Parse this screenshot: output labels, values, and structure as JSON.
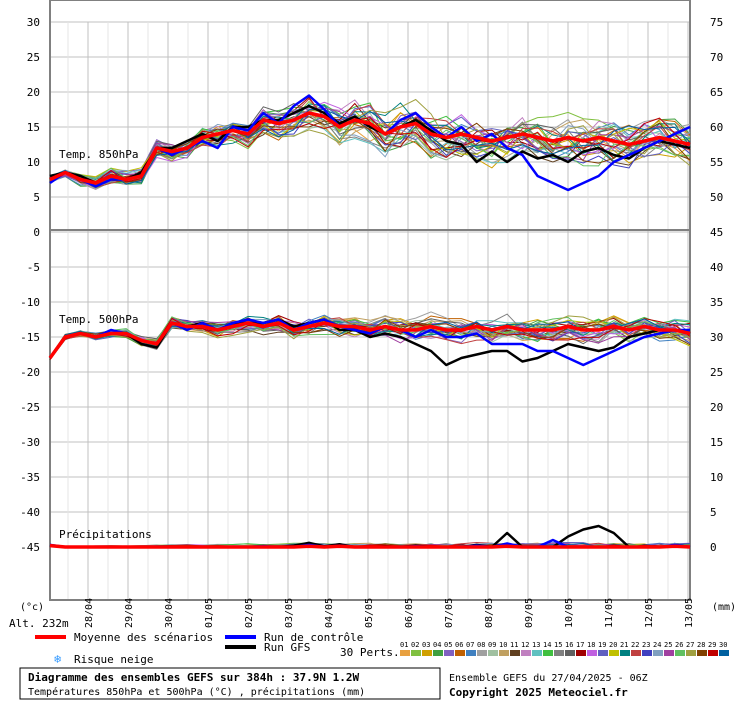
{
  "chart_data": {
    "type": "line",
    "left_axis_labels": [
      "30",
      "25",
      "20",
      "15",
      "10",
      "5",
      "0",
      "-5",
      "-10",
      "-15",
      "-20",
      "-25",
      "-30",
      "-35",
      "-40",
      "-45"
    ],
    "right_axis_labels": [
      "75",
      "70",
      "65",
      "60",
      "55",
      "50",
      "45",
      "40",
      "35",
      "30",
      "25",
      "20",
      "15",
      "10",
      "5",
      "0"
    ],
    "left_unit": "(°c)",
    "right_unit": "(mm)",
    "altitude": "Alt. 232m",
    "dates": [
      "28/04",
      "29/04",
      "30/04",
      "01/05",
      "02/05",
      "03/05",
      "04/05",
      "05/05",
      "06/05",
      "07/05",
      "08/05",
      "09/05",
      "10/05",
      "11/05",
      "12/05",
      "13/05"
    ],
    "panels": {
      "t850": {
        "label": "Temp. 850hPa",
        "mean": [
          7.5,
          8.5,
          7.5,
          7,
          8,
          7.5,
          8,
          12,
          11.5,
          12,
          13.5,
          14,
          14.5,
          14,
          16,
          15.5,
          16,
          17,
          16.5,
          15,
          16,
          15.5,
          14,
          15,
          15.5,
          14,
          13.5,
          14,
          13.5,
          13,
          13.5,
          14,
          13.5,
          13,
          13.5,
          13,
          13.5,
          13,
          12.5,
          13,
          13.5,
          13,
          12.5
        ],
        "control": [
          7,
          8.5,
          7.5,
          6.5,
          7.5,
          7.5,
          8,
          12,
          11,
          12,
          13,
          12,
          15,
          14.5,
          17,
          15.5,
          18,
          19.5,
          17.5,
          15,
          16,
          15.5,
          14,
          16,
          17,
          15,
          13.5,
          15,
          13,
          14,
          12,
          11,
          8,
          7,
          6,
          7,
          8,
          10,
          11,
          12,
          13,
          14,
          15
        ],
        "gfs": [
          8,
          8.5,
          8,
          7,
          8,
          7.5,
          8.5,
          12,
          12,
          13,
          14,
          13,
          15,
          15,
          16,
          16,
          17,
          18,
          17,
          15.5,
          16.5,
          15,
          14,
          15,
          16,
          14.5,
          13,
          12.5,
          10,
          11.5,
          10,
          11.5,
          10.5,
          11,
          10,
          11.5,
          12,
          11,
          10.5,
          12,
          13,
          12.5,
          12
        ]
      },
      "t500": {
        "label": "Temp. 500hPa",
        "mean": [
          -18,
          -15,
          -14.5,
          -15,
          -14.5,
          -14.5,
          -15.5,
          -16,
          -13,
          -13.5,
          -13.5,
          -14,
          -13.5,
          -13,
          -13.5,
          -13,
          -14,
          -13.5,
          -13,
          -13.5,
          -13.5,
          -14,
          -13.5,
          -14,
          -14,
          -13.5,
          -14,
          -14,
          -13.5,
          -14,
          -13.5,
          -14,
          -14,
          -14,
          -13.5,
          -14,
          -14,
          -13.5,
          -14,
          -13.5,
          -14,
          -14,
          -14.5
        ],
        "control": [
          -18,
          -15,
          -14.5,
          -15,
          -14,
          -14.5,
          -15.5,
          -16,
          -13,
          -14,
          -13,
          -14,
          -13,
          -12.5,
          -13,
          -12.5,
          -14,
          -13,
          -12.5,
          -13.5,
          -14,
          -14.5,
          -13.5,
          -14,
          -15,
          -14,
          -15,
          -15,
          -14.5,
          -16,
          -16,
          -16,
          -17,
          -17,
          -18,
          -19,
          -18,
          -17,
          -16,
          -15,
          -14.5,
          -14,
          -14
        ],
        "gfs": [
          -18,
          -15,
          -14.5,
          -15,
          -14.5,
          -14.5,
          -16,
          -16.5,
          -13,
          -13.5,
          -13,
          -14,
          -13,
          -13,
          -13,
          -12.5,
          -13.5,
          -13,
          -12.5,
          -14,
          -14,
          -15,
          -14.5,
          -15,
          -16,
          -17,
          -19,
          -18,
          -17.5,
          -17,
          -17,
          -18.5,
          -18,
          -17,
          -16,
          -16.5,
          -17,
          -16.5,
          -15,
          -14.5,
          -14,
          -14,
          -14.5
        ]
      },
      "precip": {
        "label": "Précipitations",
        "mean": [
          0.2,
          0,
          0,
          0,
          0,
          0,
          0,
          0,
          0,
          0,
          0,
          0,
          0,
          0,
          0,
          0,
          0,
          0.1,
          0,
          0.1,
          0,
          0,
          0,
          0,
          0,
          0,
          0,
          0,
          0,
          0,
          0.1,
          0,
          0,
          0,
          0,
          0,
          0,
          0,
          0,
          0,
          0,
          0.1,
          0
        ],
        "control": [
          0.3,
          0,
          0,
          0,
          0,
          0,
          0,
          0,
          0,
          0,
          0,
          0,
          0,
          0,
          0.1,
          0,
          0,
          0.3,
          0,
          0.2,
          0,
          0,
          0,
          0,
          0.1,
          0,
          0,
          0,
          0.2,
          0,
          0.5,
          0,
          0,
          1,
          0,
          0,
          0,
          0,
          0,
          0,
          0,
          0.3,
          0
        ],
        "gfs": [
          0.2,
          0,
          0,
          0,
          0,
          0,
          0,
          0,
          0,
          0,
          0,
          0,
          0,
          0,
          0,
          0,
          0.2,
          0.6,
          0.1,
          0.4,
          0,
          0,
          0.1,
          0,
          0.2,
          0,
          0,
          0,
          0.3,
          0,
          2,
          0,
          0,
          0,
          1.5,
          2.5,
          3,
          2,
          0,
          0,
          0,
          0.1,
          0
        ]
      }
    },
    "legend": {
      "mean": "Moyenne des scénarios",
      "control": "Run de contrôle",
      "gfs": "Run GFS",
      "snow": "Risque neige",
      "perts_label": "30 Perts.",
      "pert_numbers": [
        "01",
        "02",
        "03",
        "04",
        "05",
        "06",
        "07",
        "08",
        "09",
        "10",
        "11",
        "12",
        "13",
        "14",
        "15",
        "16",
        "17",
        "18",
        "19",
        "20",
        "21",
        "22",
        "23",
        "24",
        "25",
        "26",
        "27",
        "28",
        "29",
        "30"
      ],
      "pert_colors": [
        "#e8a040",
        "#80c040",
        "#d0a000",
        "#40a040",
        "#8060c0",
        "#c06000",
        "#4080c0",
        "#a0a0a0",
        "#a0c0a0",
        "#c0a060",
        "#604020",
        "#c080c0",
        "#60c0c0",
        "#40c040",
        "#808080",
        "#606060",
        "#a00000",
        "#c060e0",
        "#6060c0",
        "#c0c000",
        "#008080",
        "#c04040",
        "#4040c0",
        "#80a0c0",
        "#a040a0",
        "#60c060",
        "#a0a040",
        "#804000",
        "#c00000",
        "#0060a0"
      ]
    },
    "colors": {
      "mean": "#ff0000",
      "control": "#0000ff",
      "gfs": "#000000",
      "grid": "#c0c0c0",
      "panel_border": "#808080"
    }
  },
  "footer": {
    "title": "Diagramme des ensembles GEFS sur 384h : 37.9N 1.2W",
    "subtitle": "Températures 850hPa et 500hPa (°C) , précipitations (mm)",
    "run": "Ensemble GEFS du 27/04/2025 - 06Z",
    "copyright": "Copyright 2025 Meteociel.fr"
  }
}
